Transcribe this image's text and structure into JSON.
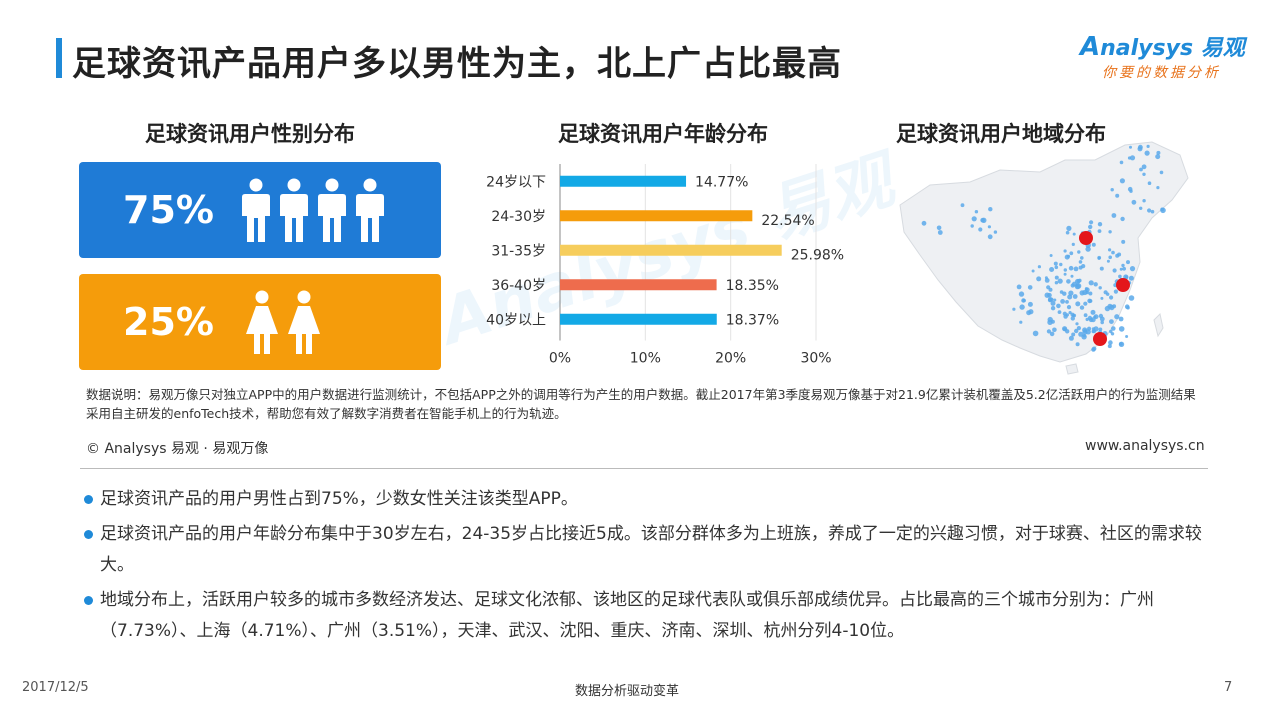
{
  "slide": {
    "title": "足球资讯产品用户多以男性为主，北上广占比最高",
    "logo_main": "nalysys 易观",
    "logo_letter": "A",
    "logo_sub": "你要的数据分析",
    "accent_color": "#1f8ad8",
    "watermark": "Analysys 易观"
  },
  "gender": {
    "title": "足球资讯用户性别分布",
    "male_pct": "75%",
    "female_pct": "25%",
    "male_color": "#1f7bd6",
    "female_color": "#f59c0b"
  },
  "age_chart_title": "足球资讯用户年龄分布",
  "region_title": "足球资讯用户地域分布",
  "chart_data": {
    "type": "bar",
    "orientation": "horizontal",
    "title": "足球资讯用户年龄分布",
    "categories": [
      "24岁以下",
      "24-30岁",
      "31-35岁",
      "36-40岁",
      "40岁以上"
    ],
    "values": [
      14.77,
      22.54,
      25.98,
      18.35,
      18.37
    ],
    "value_labels": [
      "14.77%",
      "22.54%",
      "25.98%",
      "18.35%",
      "18.37%"
    ],
    "colors": [
      "#13a9e6",
      "#f59c0b",
      "#f6cd5c",
      "#ee6c4d",
      "#13a9e6"
    ],
    "xlim": [
      0,
      30
    ],
    "xticks": [
      "0%",
      "10%",
      "20%",
      "30%"
    ],
    "grid": true
  },
  "footnote": "数据说明：易观万像只对独立APP中的用户数据进行监测统计，不包括APP之外的调用等行为产生的用户数据。截止2017年第3季度易观万像基于对21.9亿累计装机覆盖及5.2亿活跃用户的行为监测结果采用自主研发的enfoTech技术，帮助您有效了解数字消费者在智能手机上的行为轨迹。",
  "copyright": "© Analysys 易观 · 易观万像",
  "website": "www.analysys.cn",
  "bullets": [
    "足球资讯产品的用户男性占到75%，少数女性关注该类型APP。",
    "足球资讯产品的用户年龄分布集中于30岁左右，24-35岁占比接近5成。该部分群体多为上班族，养成了一定的兴趣习惯，对于球赛、社区的需求较大。",
    "地域分布上，活跃用户较多的城市多数经济发达、足球文化浓郁、该地区的足球代表队或俱乐部成绩优异。占比最高的三个城市分别为：广州（7.73%）、上海（4.71%）、广州（3.51%），天津、武汉、沈阳、重庆、济南、深圳、杭州分列4-10位。"
  ],
  "footer": {
    "date": "2017/12/5",
    "center": "数据分析驱动变革",
    "page": "7"
  }
}
